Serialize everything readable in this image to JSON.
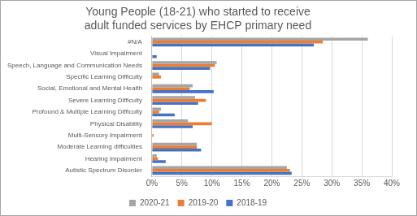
{
  "chart_data": {
    "type": "bar",
    "orientation": "horizontal",
    "title": [
      "Young People (18-21) who started to receive",
      "adult funded services by EHCP primary need"
    ],
    "categories": [
      "#N/A",
      "Visual Impairment",
      "Speech, Language and Communication Needs",
      "Specific Learning Difficulty",
      "Social, Emotional and Mental Health",
      "Severe Learning Difficulty",
      "Profound & Multiple Learning Difficulty",
      "Physical Disability",
      "Multi-Sensory Impairment",
      "Moderate Learning difficulties",
      "Hearing Impairment",
      "Autistic Spectrum Disorder"
    ],
    "series": [
      {
        "name": "2020-21",
        "color": "#a5a5a5",
        "values": [
          36,
          0,
          10.8,
          1.2,
          6.8,
          7.2,
          1.5,
          6,
          0,
          7.5,
          0.8,
          22.5
        ]
      },
      {
        "name": "2019-20",
        "color": "#ed7d31",
        "values": [
          28.5,
          0,
          10.5,
          1.5,
          6.3,
          9,
          1.2,
          10,
          0.3,
          7.5,
          1,
          23
        ]
      },
      {
        "name": "2018-19",
        "color": "#4472c4",
        "values": [
          27,
          0.8,
          9.7,
          0,
          10.3,
          7.7,
          3.8,
          6.8,
          0,
          8.2,
          2.3,
          23.3
        ]
      }
    ],
    "xlim": [
      0,
      40
    ],
    "xticks": [
      {
        "value": 0,
        "label": "0%"
      },
      {
        "value": 5,
        "label": "5%"
      },
      {
        "value": 10,
        "label": "10%"
      },
      {
        "value": 15,
        "label": "15%"
      },
      {
        "value": 20,
        "label": "20%"
      },
      {
        "value": 25,
        "label": "25%"
      },
      {
        "value": 30,
        "label": "30%"
      },
      {
        "value": 35,
        "label": "35%"
      },
      {
        "value": 40,
        "label": "40%"
      }
    ],
    "grid": true,
    "legend": "bottom"
  }
}
